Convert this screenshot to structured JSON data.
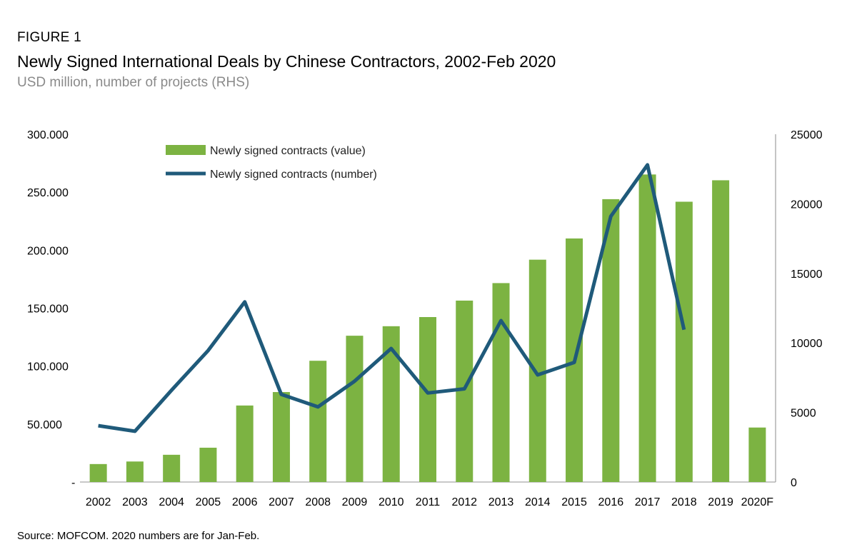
{
  "figure_label": "FIGURE 1",
  "title": "Newly Signed International Deals by Chinese Contractors, 2002-Feb 2020",
  "subtitle": "USD million, number of projects (RHS)",
  "source": "Source: MOFCOM. 2020 numbers are for Jan-Feb.",
  "colors": {
    "bar": "#7cb342",
    "line": "#1f5a7a",
    "axis": "#a6a6a6"
  },
  "chart_data": {
    "type": "bar",
    "title": "Newly Signed International Deals by Chinese Contractors, 2002-Feb 2020",
    "categories": [
      "2002",
      "2003",
      "2004",
      "2005",
      "2006",
      "2007",
      "2008",
      "2009",
      "2010",
      "2011",
      "2012",
      "2013",
      "2014",
      "2015",
      "2016",
      "2017",
      "2018",
      "2019",
      "2020F"
    ],
    "ylim": [
      0,
      300000
    ],
    "y_ticks": [
      {
        "value": 0,
        "label": "-"
      },
      {
        "value": 50000,
        "label": "50.000"
      },
      {
        "value": 100000,
        "label": "100.000"
      },
      {
        "value": 150000,
        "label": "150.000"
      },
      {
        "value": 200000,
        "label": "200.000"
      },
      {
        "value": 250000,
        "label": "250.000"
      },
      {
        "value": 300000,
        "label": "300.000"
      }
    ],
    "y2lim": [
      0,
      25000
    ],
    "y2_ticks": [
      {
        "value": 0,
        "label": "0"
      },
      {
        "value": 5000,
        "label": "5000"
      },
      {
        "value": 10000,
        "label": "10000"
      },
      {
        "value": 15000,
        "label": "15000"
      },
      {
        "value": 20000,
        "label": "20000"
      },
      {
        "value": 25000,
        "label": "25000"
      }
    ],
    "legend_position": "top-left",
    "series": [
      {
        "name": "Newly signed contracts (value)",
        "type": "bar",
        "axis": "left",
        "values": [
          15500,
          17700,
          23500,
          29600,
          66000,
          77600,
          104600,
          126200,
          134400,
          142300,
          156500,
          171600,
          191800,
          210100,
          244000,
          265300,
          241800,
          260300,
          47000
        ]
      },
      {
        "name": "Newly signed contracts (number)",
        "type": "line",
        "axis": "right",
        "values": [
          4050,
          3650,
          6600,
          9450,
          12950,
          6300,
          5400,
          7250,
          9600,
          6400,
          6700,
          11600,
          7700,
          8600,
          19100,
          22800,
          10950,
          null,
          null
        ]
      }
    ]
  }
}
